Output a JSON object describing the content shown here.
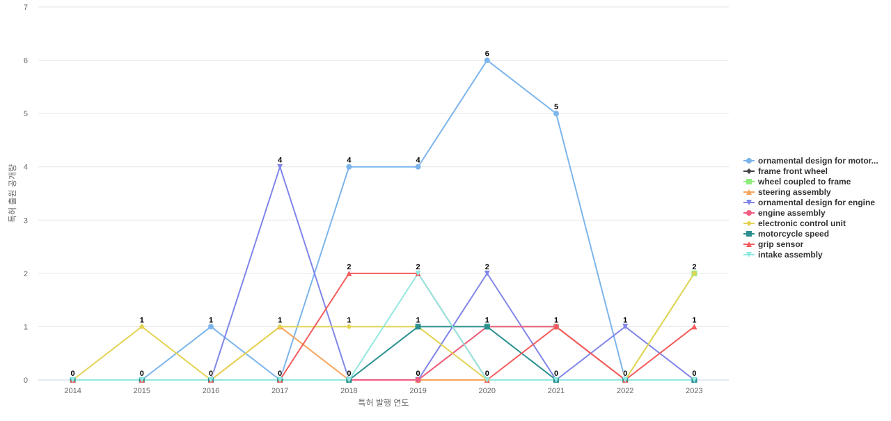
{
  "chart_data": {
    "type": "line",
    "title": "",
    "xlabel": "특허 발행 연도",
    "ylabel": "특허 출원 공개량",
    "categories": [
      "2014",
      "2015",
      "2016",
      "2017",
      "2018",
      "2019",
      "2020",
      "2021",
      "2022",
      "2023"
    ],
    "ylim": [
      0,
      7
    ],
    "yticks": [
      0,
      1,
      2,
      3,
      4,
      5,
      6,
      7
    ],
    "grid": "horizontal",
    "legend_position": "right",
    "series": [
      {
        "name": "ornamental design for motor...",
        "color": "#7cb5ec",
        "marker": "circle",
        "values": [
          0,
          0,
          1,
          0,
          4,
          4,
          6,
          5,
          0,
          0
        ]
      },
      {
        "name": "frame front wheel",
        "color": "#434348",
        "marker": "diamond",
        "values": [
          0,
          0,
          0,
          0,
          0,
          0,
          0,
          0,
          0,
          0
        ]
      },
      {
        "name": "wheel coupled to frame",
        "color": "#90ed7d",
        "marker": "square",
        "values": [
          0,
          0,
          0,
          0,
          0,
          0,
          1,
          1,
          0,
          2
        ]
      },
      {
        "name": "steering assembly",
        "color": "#f7a35c",
        "marker": "triangle",
        "values": [
          0,
          0,
          0,
          1,
          0,
          0,
          0,
          0,
          0,
          0
        ]
      },
      {
        "name": "ornamental design for engine",
        "color": "#8085e9",
        "marker": "triangle-down",
        "values": [
          0,
          0,
          0,
          4,
          0,
          0,
          2,
          0,
          1,
          0
        ]
      },
      {
        "name": "engine assembly",
        "color": "#f15c80",
        "marker": "circle",
        "values": [
          0,
          0,
          0,
          0,
          0,
          0,
          1,
          1,
          0,
          0
        ]
      },
      {
        "name": "electronic control unit",
        "color": "#e4d354",
        "marker": "diamond",
        "values": [
          0,
          1,
          0,
          1,
          1,
          1,
          0,
          0,
          0,
          2
        ]
      },
      {
        "name": "motorcycle speed",
        "color": "#2b908f",
        "marker": "square",
        "values": [
          0,
          0,
          0,
          0,
          0,
          1,
          1,
          0,
          0,
          0
        ]
      },
      {
        "name": "grip sensor",
        "color": "#f45b5b",
        "marker": "triangle",
        "values": [
          0,
          0,
          0,
          0,
          2,
          2,
          0,
          1,
          0,
          1
        ]
      },
      {
        "name": "intake assembly",
        "color": "#91e8e1",
        "marker": "triangle-down",
        "values": [
          0,
          0,
          0,
          0,
          0,
          2,
          0,
          0,
          0,
          0
        ]
      }
    ],
    "data_labels": [
      {
        "category": "2014",
        "value": 0,
        "text": "0"
      },
      {
        "category": "2015",
        "value": 1,
        "text": "1"
      },
      {
        "category": "2015",
        "value": 0,
        "text": "0"
      },
      {
        "category": "2016",
        "value": 1,
        "text": "1"
      },
      {
        "category": "2016",
        "value": 0,
        "text": "0"
      },
      {
        "category": "2017",
        "value": 4,
        "text": "4"
      },
      {
        "category": "2017",
        "value": 1,
        "text": "1"
      },
      {
        "category": "2017",
        "value": 0,
        "text": "0"
      },
      {
        "category": "2018",
        "value": 4,
        "text": "4"
      },
      {
        "category": "2018",
        "value": 2,
        "text": "2"
      },
      {
        "category": "2018",
        "value": 1,
        "text": "1"
      },
      {
        "category": "2018",
        "value": 0,
        "text": "0"
      },
      {
        "category": "2019",
        "value": 4,
        "text": "4"
      },
      {
        "category": "2019",
        "value": 2,
        "text": "2"
      },
      {
        "category": "2019",
        "value": 1,
        "text": "1"
      },
      {
        "category": "2019",
        "value": 0,
        "text": "0"
      },
      {
        "category": "2020",
        "value": 6,
        "text": "6"
      },
      {
        "category": "2020",
        "value": 2,
        "text": "2"
      },
      {
        "category": "2020",
        "value": 1,
        "text": "1"
      },
      {
        "category": "2020",
        "value": 0,
        "text": "0"
      },
      {
        "category": "2021",
        "value": 5,
        "text": "5"
      },
      {
        "category": "2021",
        "value": 1,
        "text": "1"
      },
      {
        "category": "2021",
        "value": 0,
        "text": "0"
      },
      {
        "category": "2022",
        "value": 1,
        "text": "1"
      },
      {
        "category": "2022",
        "value": 0,
        "text": "0"
      },
      {
        "category": "2023",
        "value": 2,
        "text": "2"
      },
      {
        "category": "2023",
        "value": 1,
        "text": "1"
      },
      {
        "category": "2023",
        "value": 0,
        "text": "0"
      }
    ]
  }
}
